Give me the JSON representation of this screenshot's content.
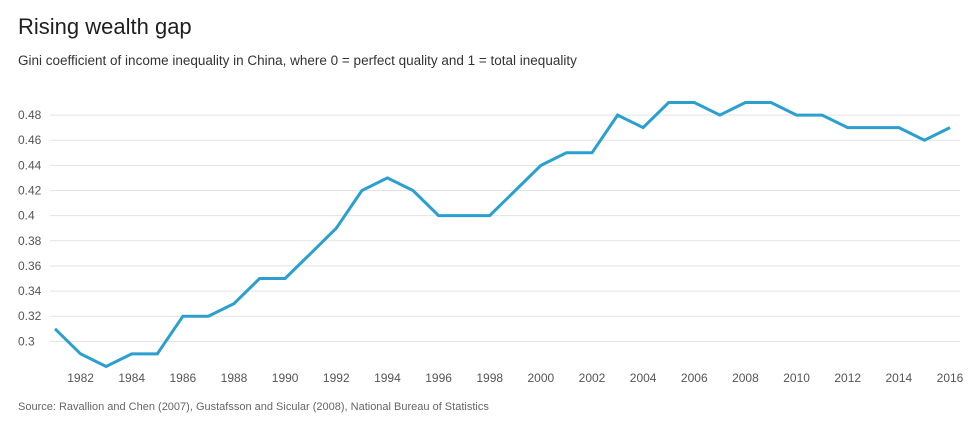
{
  "header": {
    "title": "Rising wealth gap",
    "subtitle": "Gini coefficient of income inequality in China, where 0 = perfect quality and 1 = total inequality"
  },
  "footer": {
    "source": "Source: Ravallion and Chen (2007), Gustafsson and Sicular (2008), National Bureau of Statistics"
  },
  "colors": {
    "line": "#2a9fd0",
    "grid": "#e3e3e3",
    "tick_label": "#555555"
  },
  "chart_data": {
    "type": "line",
    "title": "Rising wealth gap",
    "subtitle": "Gini coefficient of income inequality in China, where 0 = perfect quality and 1 = total inequality",
    "xlabel": "",
    "ylabel": "",
    "grid": true,
    "legend": "none",
    "xlim": [
      1981,
      2016
    ],
    "ylim": [
      0.28,
      0.49
    ],
    "x_ticks": [
      1982,
      1984,
      1986,
      1988,
      1990,
      1992,
      1994,
      1996,
      1998,
      2000,
      2002,
      2004,
      2006,
      2008,
      2010,
      2012,
      2014,
      2016
    ],
    "y_ticks": [
      0.3,
      0.32,
      0.34,
      0.36,
      0.38,
      0.4,
      0.42,
      0.44,
      0.46,
      0.48
    ],
    "y_tick_labels": [
      "0.3",
      "0.32",
      "0.34",
      "0.36",
      "0.38",
      "0.4",
      "0.42",
      "0.44",
      "0.46",
      "0.48"
    ],
    "series": [
      {
        "x": [
          1981,
          1982,
          1983,
          1984,
          1985,
          1986,
          1987,
          1988,
          1989,
          1990,
          1991,
          1992,
          1993,
          1994,
          1995,
          1996,
          1997,
          1998,
          1999,
          2000,
          2001,
          2002,
          2003,
          2004,
          2005,
          2006,
          2007,
          2008,
          2009,
          2010,
          2011,
          2012,
          2013,
          2014,
          2015,
          2016
        ],
        "values": [
          0.31,
          0.29,
          0.28,
          0.29,
          0.29,
          0.32,
          0.32,
          0.33,
          0.35,
          0.35,
          0.37,
          0.39,
          0.42,
          0.43,
          0.42,
          0.4,
          0.4,
          0.4,
          0.42,
          0.44,
          0.45,
          0.45,
          0.48,
          0.47,
          0.49,
          0.49,
          0.48,
          0.49,
          0.49,
          0.48,
          0.48,
          0.47,
          0.47,
          0.47,
          0.46,
          0.47
        ]
      }
    ]
  }
}
